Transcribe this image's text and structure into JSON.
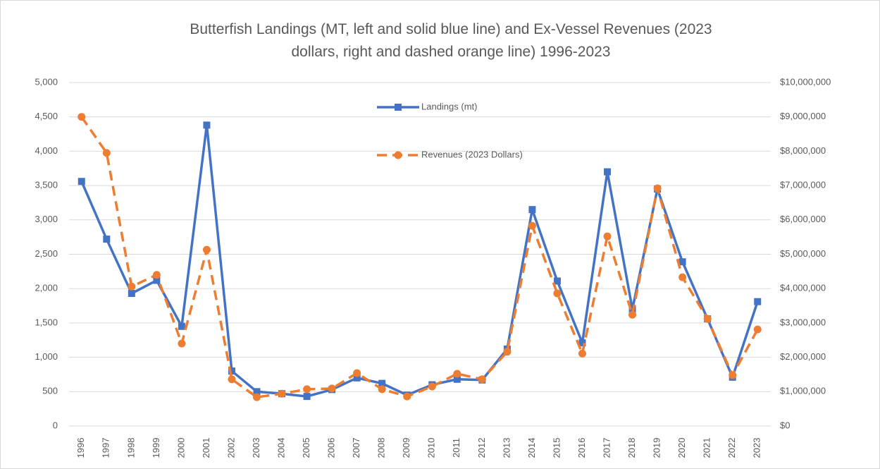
{
  "chart_data": {
    "type": "line",
    "title": "Butterfish Landings (MT, left and solid blue line) and Ex-Vessel Revenues (2023 dollars, right and dashed orange line) 1996-2023",
    "categories": [
      "1996",
      "1997",
      "1998",
      "1999",
      "2000",
      "2001",
      "2002",
      "2003",
      "2004",
      "2005",
      "2006",
      "2007",
      "2008",
      "2009",
      "2010",
      "2011",
      "2012",
      "2013",
      "2014",
      "2015",
      "2016",
      "2017",
      "2018",
      "2019",
      "2020",
      "2021",
      "2022",
      "2023"
    ],
    "series": [
      {
        "name": "Landings (mt)",
        "color": "#4472c4",
        "marker": "square",
        "dashed": false,
        "axis": "y",
        "values": [
          3560,
          2720,
          1930,
          2120,
          1450,
          4380,
          800,
          500,
          470,
          430,
          530,
          700,
          620,
          450,
          600,
          680,
          670,
          1120,
          3150,
          2110,
          1210,
          3700,
          1700,
          3450,
          2390,
          1560,
          710,
          1810
        ]
      },
      {
        "name": "Revenues (2023 Dollars)",
        "color": "#ed7d31",
        "marker": "circle",
        "dashed": true,
        "axis": "y2",
        "values": [
          9000000,
          7950000,
          4060000,
          4400000,
          2400000,
          5130000,
          1360000,
          840000,
          940000,
          1070000,
          1090000,
          1540000,
          1070000,
          860000,
          1150000,
          1520000,
          1360000,
          2160000,
          5830000,
          3860000,
          2110000,
          5520000,
          3240000,
          6920000,
          4330000,
          3120000,
          1480000,
          2810000
        ]
      }
    ],
    "ylim": [
      0,
      5000
    ],
    "yticks": [
      0,
      500,
      {
        "value": 1000,
        "label": "1,000"
      },
      {
        "value": 1500,
        "label": "1,500"
      },
      {
        "value": 2000,
        "label": "2,000"
      },
      {
        "value": 2500,
        "label": "2,500"
      },
      {
        "value": 3000,
        "label": "3,000"
      },
      {
        "value": 3500,
        "label": "3,500"
      },
      {
        "value": 4000,
        "label": "4,000"
      },
      {
        "value": 4500,
        "label": "4,500"
      },
      {
        "value": 5000,
        "label": "5,000"
      }
    ],
    "y2lim": [
      0,
      10000000
    ],
    "y2ticks": [
      {
        "value": 0,
        "label": "$0"
      },
      {
        "value": 1000000,
        "label": "$1,000,000"
      },
      {
        "value": 2000000,
        "label": "$2,000,000"
      },
      {
        "value": 3000000,
        "label": "$3,000,000"
      },
      {
        "value": 4000000,
        "label": "$4,000,000"
      },
      {
        "value": 5000000,
        "label": "$5,000,000"
      },
      {
        "value": 6000000,
        "label": "$6,000,000"
      },
      {
        "value": 7000000,
        "label": "$7,000,000"
      },
      {
        "value": 8000000,
        "label": "$8,000,000"
      },
      {
        "value": 9000000,
        "label": "$9,000,000"
      },
      {
        "value": 10000000,
        "label": "$10,000,000"
      }
    ],
    "grid": true,
    "legend": "top"
  }
}
